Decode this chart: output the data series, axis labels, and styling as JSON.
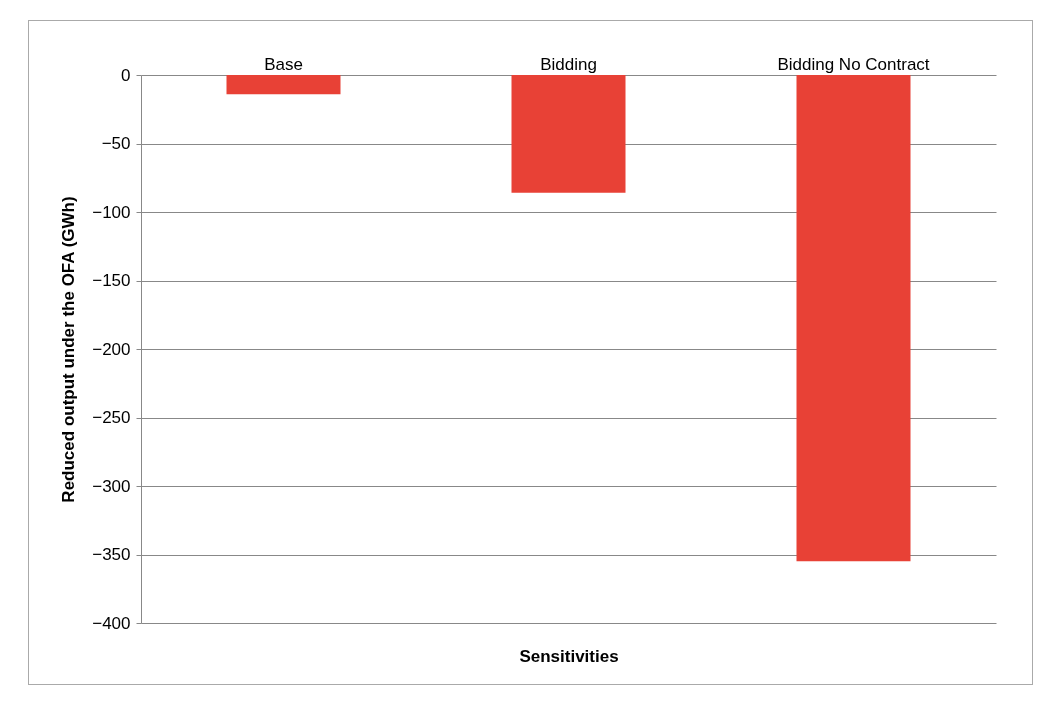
{
  "chart_data": {
    "type": "bar",
    "xlabel": "Sensitivities",
    "ylabel": "Reduced output under the OFA (GWh)",
    "categories": [
      "Base",
      "Bidding",
      "Bidding No Contract"
    ],
    "values": [
      -14,
      -86,
      -355
    ],
    "color": "#e84136",
    "ylim": [
      -400,
      0
    ],
    "yticks": [
      0,
      -50,
      -100,
      -150,
      -200,
      -250,
      -300,
      -350,
      -400
    ],
    "grid": "y"
  }
}
